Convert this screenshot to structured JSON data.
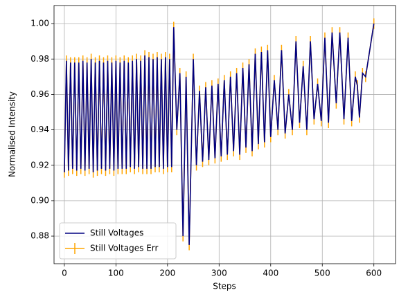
{
  "chart_data": {
    "type": "line",
    "xlabel": "Steps",
    "ylabel": "Normalised Intensity",
    "x": [
      0,
      4,
      8,
      12,
      16,
      20,
      24,
      28,
      32,
      36,
      40,
      44,
      48,
      52,
      56,
      60,
      64,
      68,
      72,
      76,
      80,
      84,
      88,
      92,
      96,
      100,
      104,
      108,
      112,
      116,
      120,
      124,
      128,
      132,
      136,
      140,
      144,
      148,
      152,
      156,
      160,
      164,
      168,
      172,
      176,
      180,
      184,
      188,
      192,
      196,
      200,
      204,
      208,
      212,
      218,
      224,
      230,
      236,
      242,
      250,
      256,
      262,
      268,
      274,
      280,
      286,
      292,
      298,
      304,
      310,
      316,
      322,
      328,
      334,
      340,
      346,
      352,
      358,
      364,
      370,
      376,
      382,
      388,
      394,
      400,
      407,
      414,
      421,
      428,
      435,
      442,
      449,
      456,
      463,
      470,
      477,
      484,
      491,
      498,
      505,
      512,
      519,
      527,
      534,
      542,
      550,
      557,
      564,
      568,
      572,
      578,
      584,
      600
    ],
    "series": [
      {
        "name": "Still Voltages",
        "color": "#000080",
        "values": [
          0.916,
          0.979,
          0.917,
          0.978,
          0.918,
          0.978,
          0.917,
          0.978,
          0.918,
          0.979,
          0.917,
          0.978,
          0.918,
          0.98,
          0.916,
          0.978,
          0.917,
          0.979,
          0.918,
          0.978,
          0.917,
          0.979,
          0.918,
          0.978,
          0.917,
          0.979,
          0.918,
          0.978,
          0.918,
          0.979,
          0.918,
          0.978,
          0.919,
          0.979,
          0.918,
          0.98,
          0.919,
          0.979,
          0.918,
          0.982,
          0.918,
          0.981,
          0.918,
          0.98,
          0.919,
          0.981,
          0.919,
          0.98,
          0.918,
          0.981,
          0.919,
          0.98,
          0.919,
          0.998,
          0.94,
          0.972,
          0.88,
          0.97,
          0.875,
          0.98,
          0.92,
          0.962,
          0.922,
          0.964,
          0.923,
          0.965,
          0.924,
          0.966,
          0.925,
          0.968,
          0.926,
          0.97,
          0.928,
          0.972,
          0.926,
          0.975,
          0.93,
          0.977,
          0.928,
          0.983,
          0.932,
          0.984,
          0.933,
          0.985,
          0.936,
          0.968,
          0.94,
          0.985,
          0.938,
          0.96,
          0.94,
          0.99,
          0.944,
          0.976,
          0.94,
          0.99,
          0.946,
          0.966,
          0.945,
          0.992,
          0.944,
          0.995,
          0.955,
          0.995,
          0.946,
          0.992,
          0.945,
          0.97,
          0.965,
          0.947,
          0.972,
          0.97,
          1.0
        ]
      },
      {
        "name": "Still Voltages Err",
        "color": "#ffa500",
        "error": 0.003,
        "values": [
          0.916,
          0.979,
          0.917,
          0.978,
          0.918,
          0.978,
          0.917,
          0.978,
          0.918,
          0.979,
          0.917,
          0.978,
          0.918,
          0.98,
          0.916,
          0.978,
          0.917,
          0.979,
          0.918,
          0.978,
          0.917,
          0.979,
          0.918,
          0.978,
          0.917,
          0.979,
          0.918,
          0.978,
          0.918,
          0.979,
          0.918,
          0.978,
          0.919,
          0.979,
          0.918,
          0.98,
          0.919,
          0.979,
          0.918,
          0.982,
          0.918,
          0.981,
          0.918,
          0.98,
          0.919,
          0.981,
          0.919,
          0.98,
          0.918,
          0.981,
          0.919,
          0.98,
          0.919,
          0.998,
          0.94,
          0.972,
          0.88,
          0.97,
          0.875,
          0.98,
          0.92,
          0.962,
          0.922,
          0.964,
          0.923,
          0.965,
          0.924,
          0.966,
          0.925,
          0.968,
          0.926,
          0.97,
          0.928,
          0.972,
          0.926,
          0.975,
          0.93,
          0.977,
          0.928,
          0.983,
          0.932,
          0.984,
          0.933,
          0.985,
          0.936,
          0.968,
          0.94,
          0.985,
          0.938,
          0.96,
          0.94,
          0.99,
          0.944,
          0.976,
          0.94,
          0.99,
          0.946,
          0.966,
          0.945,
          0.992,
          0.944,
          0.995,
          0.955,
          0.995,
          0.946,
          0.992,
          0.945,
          0.97,
          0.965,
          0.947,
          0.972,
          0.97,
          1.0
        ]
      }
    ],
    "xlim": [
      -20,
      642
    ],
    "xticks": [
      0,
      100,
      200,
      300,
      400,
      500,
      600
    ],
    "ylim": [
      0.8644,
      1.0102
    ],
    "yticks": [
      0.88,
      {
        "value": 0.9,
        "label": "0.90"
      },
      0.92,
      0.94,
      0.96,
      0.98,
      {
        "value": 1.0,
        "label": "1.00"
      }
    ],
    "grid": true,
    "legend": "lower left"
  }
}
